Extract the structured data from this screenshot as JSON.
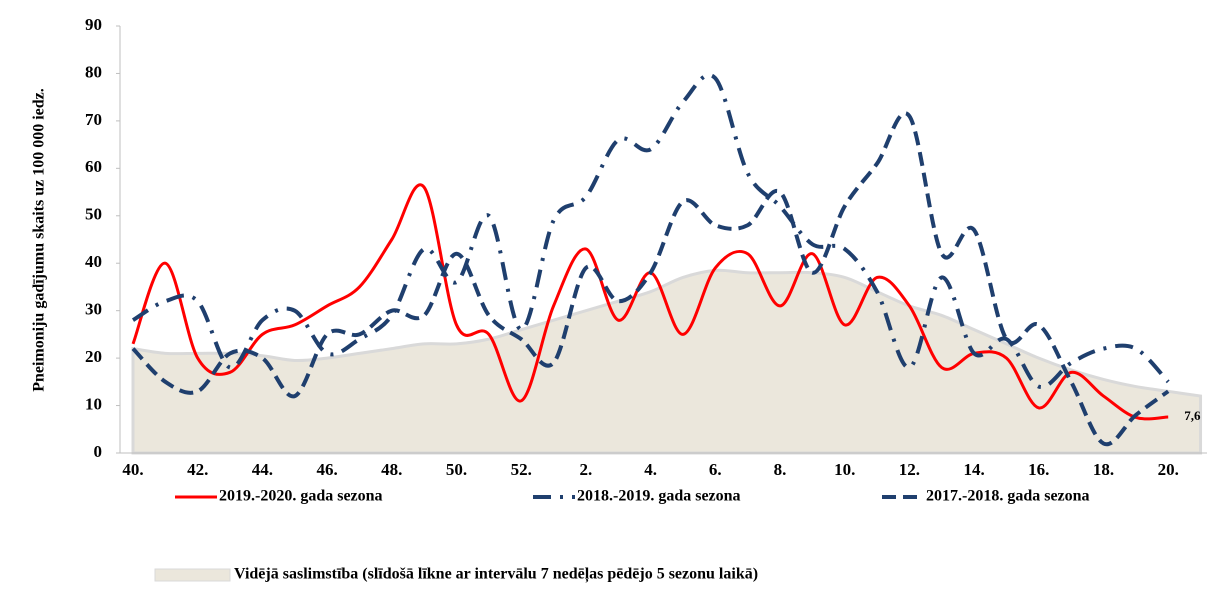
{
  "chart_data": {
    "type": "line",
    "y_label": "Pneimoniju gadījumu skaits uz 100 000 iedz.",
    "categories": [
      "40.",
      null,
      "42.",
      null,
      "44.",
      null,
      "46.",
      null,
      "48.",
      null,
      "50.",
      null,
      "52.",
      null,
      "2.",
      null,
      "4.",
      null,
      "6.",
      null,
      "8.",
      null,
      "10.",
      null,
      "12.",
      null,
      "14.",
      null,
      "16.",
      null,
      "18.",
      null,
      "20.",
      null
    ],
    "ylim": [
      0,
      90
    ],
    "yticks": [
      0,
      10,
      20,
      30,
      40,
      50,
      60,
      70,
      80,
      90
    ],
    "series": [
      {
        "name": "2019.-2020. gada sezona",
        "color": "#ff0000",
        "dash": "solid",
        "values": [
          23,
          40,
          20,
          17,
          25,
          27,
          31,
          35,
          45,
          56,
          27,
          25,
          11,
          31,
          43,
          28,
          38,
          25,
          39,
          42,
          31,
          42,
          27,
          37,
          31,
          18,
          21,
          20,
          9.5,
          17,
          12,
          7.5,
          7.6,
          null
        ],
        "value_labels": [
          null,
          null,
          null,
          null,
          null,
          null,
          null,
          null,
          null,
          null,
          null,
          null,
          null,
          null,
          null,
          null,
          null,
          null,
          null,
          null,
          null,
          null,
          null,
          null,
          null,
          null,
          null,
          null,
          null,
          null,
          null,
          null,
          "7,6",
          null
        ]
      },
      {
        "name": "2018.-2019. gada sezona",
        "color": "#1f3f6e",
        "dash": "dash-dot",
        "values": [
          28,
          32,
          32,
          18,
          28,
          30,
          21,
          24,
          29,
          43,
          36,
          50,
          26,
          49,
          54,
          66,
          64,
          74,
          79,
          59,
          52,
          44,
          43,
          34,
          18,
          37,
          21,
          24,
          14,
          19,
          22,
          22,
          15,
          null
        ]
      },
      {
        "name": "2017.-2018. gada sezona",
        "color": "#1f3f6e",
        "dash": "dash",
        "values": [
          22,
          15,
          13,
          21,
          20,
          12,
          25,
          25,
          30,
          29,
          42,
          29,
          24,
          19,
          39,
          32,
          38,
          53,
          48,
          48,
          55,
          38,
          52,
          61,
          71,
          42,
          47,
          24,
          27,
          15,
          2,
          8,
          13,
          null
        ]
      }
    ],
    "area": {
      "name": "Vidējā saslimstība (slīdošā līkne ar intervālu 7 nedēļas pēdējo 5 sezonu laikā)",
      "color": "#ebe7dc",
      "values": [
        22,
        21,
        21,
        21,
        20.5,
        19.5,
        20,
        21,
        22,
        23,
        23,
        24,
        26,
        28,
        30,
        32,
        34,
        37,
        38.5,
        38,
        38,
        38,
        37,
        34,
        31,
        29,
        26,
        23,
        20,
        17.5,
        15.5,
        14,
        13,
        12
      ]
    }
  }
}
